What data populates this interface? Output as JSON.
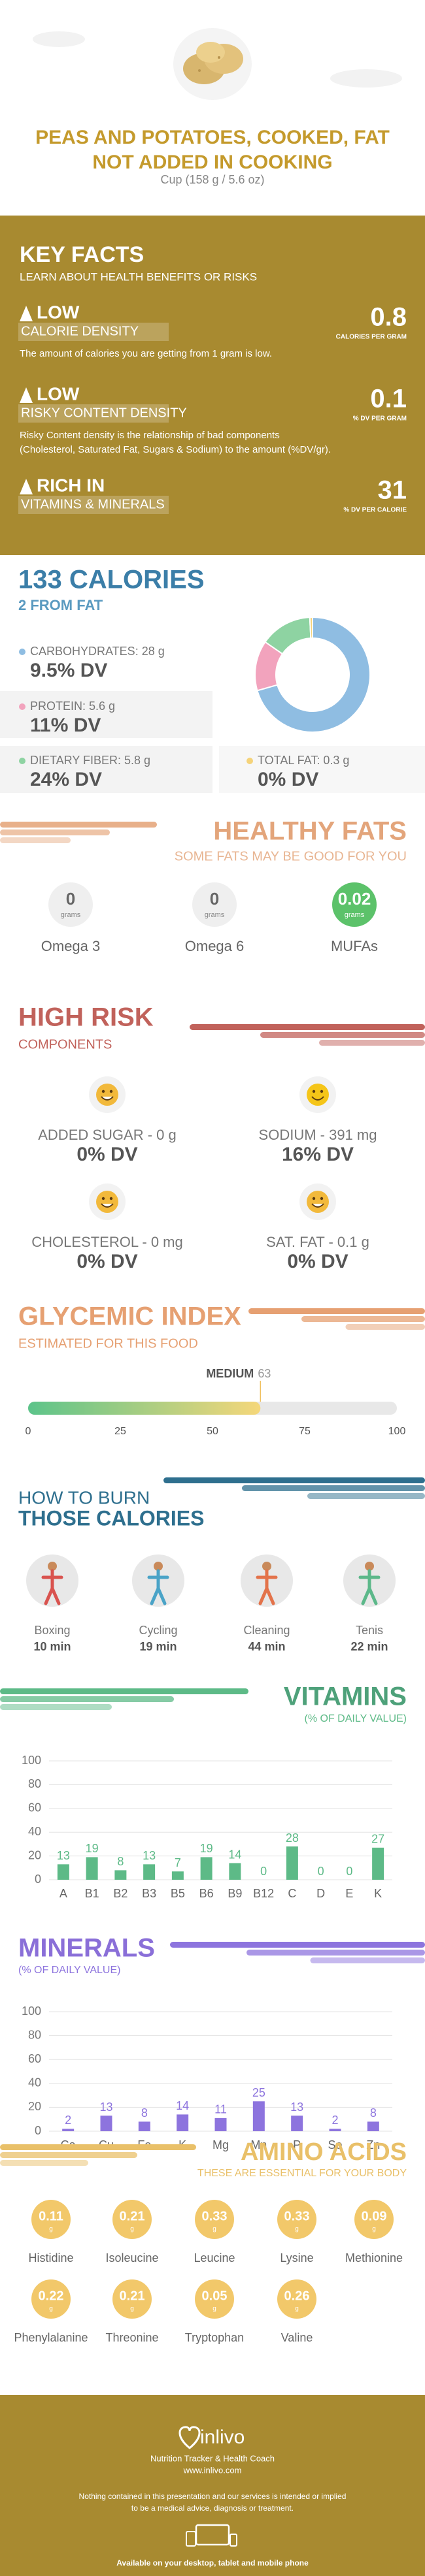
{
  "header": {
    "title_lines": [
      "PEAS AND POTATOES, COOKED, FAT",
      "NOT ADDED IN COOKING"
    ],
    "serving": "Cup (158 g / 5.6 oz)"
  },
  "key_facts": {
    "title": "KEY FACTS",
    "subtitle": "LEARN ABOUT HEALTH BENEFITS OR RISKS",
    "items": [
      {
        "level": "LOW",
        "label": "CALORIE DENSITY",
        "value": 0.8,
        "unit": "CALORIES PER GRAM",
        "description_lines": [
          "The amount of calories you are getting from 1 gram is low."
        ]
      },
      {
        "level": "LOW",
        "label": "RISKY CONTENT DENSITY",
        "value": 0.1,
        "unit": "% DV PER GRAM",
        "description_lines": [
          "Risky Content density is the relationship of bad components",
          "(Cholesterol, Saturated Fat, Sugars & Sodium) to the amount (%DV/gr)."
        ]
      },
      {
        "level": "RICH IN",
        "label": "VITAMINS & MINERALS",
        "value": 31,
        "unit": "% DV PER CALORIE",
        "description_lines": []
      }
    ]
  },
  "calories": {
    "title": "133 CALORIES",
    "subtitle": "2 FROM FAT"
  },
  "healthy_fats": {
    "title": "HEALTHY FATS",
    "subtitle": "SOME FATS MAY BE GOOD FOR YOU",
    "unit": "grams",
    "items": [
      {
        "name": "Omega 3",
        "value": 0
      },
      {
        "name": "Omega 6",
        "value": 0
      },
      {
        "name": "MUFAs",
        "value": 0.02
      }
    ]
  },
  "high_risk": {
    "title": "HIGH RISK",
    "subtitle": "COMPONENTS",
    "items": [
      {
        "label": "ADDED SUGAR - 0 g",
        "dv": "0% DV"
      },
      {
        "label": "SODIUM - 391 mg",
        "dv": "16% DV"
      },
      {
        "label": "CHOLESTEROL - 0 mg",
        "dv": "0% DV"
      },
      {
        "label": "SAT. FAT - 0.1 g",
        "dv": "0% DV"
      }
    ]
  },
  "burn": {
    "title_lines": [
      "HOW TO BURN",
      "THOSE CALORIES"
    ],
    "activities": [
      {
        "name": "Boxing",
        "time": "10 min"
      },
      {
        "name": "Cycling",
        "time": "19 min"
      },
      {
        "name": "Cleaning",
        "time": "44 min"
      },
      {
        "name": "Tenis",
        "time": "22 min"
      }
    ]
  },
  "amino_acids": {
    "title": "AMINO ACIDS",
    "subtitle": "THESE ARE ESSENTIAL FOR YOUR BODY",
    "unit": "g",
    "items": [
      {
        "name": "Histidine",
        "value": 0.11
      },
      {
        "name": "Isoleucine",
        "value": 0.21
      },
      {
        "name": "Leucine",
        "value": 0.33
      },
      {
        "name": "Lysine",
        "value": 0.33
      },
      {
        "name": "Methionine",
        "value": 0.09
      },
      {
        "name": "Phenylalanine",
        "value": 0.22
      },
      {
        "name": "Threonine",
        "value": 0.21
      },
      {
        "name": "Tryptophan",
        "value": 0.05
      },
      {
        "name": "Valine",
        "value": 0.26
      }
    ]
  },
  "footer": {
    "brand": "inlivo",
    "tagline": "Nutrition Tracker & Health Coach",
    "url": "www.inlivo.com",
    "disclaimer_lines": [
      "Nothing contained in this presentation and our services is intended or implied",
      "to be a medical advice, diagnosis or treatment."
    ],
    "available": "Available on your desktop, tablet and mobile phone"
  },
  "chart_data": [
    {
      "type": "pie",
      "categories": [
        "CARBOHYDRATES: 28 g",
        "PROTEIN: 5.6 g",
        "DIETARY FIBER: 5.8 g",
        "TOTAL FAT: 0.3 g"
      ],
      "values": [
        28,
        5.6,
        5.8,
        0.3
      ],
      "dv": [
        "9.5% DV",
        "11% DV",
        "24% DV",
        "0% DV"
      ],
      "colors": [
        "#8fbde2",
        "#f2a3bd",
        "#8ed3a2",
        "#f5d37a"
      ]
    },
    {
      "type": "gauge",
      "title": "GLYCEMIC INDEX",
      "subtitle": "ESTIMATED FOR THIS FOOD",
      "level": "MEDIUM",
      "value": 63,
      "xlim": [
        0,
        100
      ],
      "xticks": [
        0,
        25,
        50,
        75,
        100
      ]
    },
    {
      "type": "bar",
      "title": "VITAMINS",
      "subtitle": "(% OF DAILY VALUE)",
      "categories": [
        "A",
        "B1",
        "B2",
        "B3",
        "B5",
        "B6",
        "B9",
        "B12",
        "C",
        "D",
        "E",
        "K"
      ],
      "values": [
        13,
        19,
        8,
        13,
        7,
        19,
        14,
        0,
        28,
        0,
        0,
        27
      ],
      "color": "#5dba87",
      "ylim": [
        0,
        100
      ],
      "yticks": [
        0,
        20,
        40,
        60,
        80,
        100
      ],
      "grid": true
    },
    {
      "type": "bar",
      "title": "MINERALS",
      "subtitle": "(% OF DAILY VALUE)",
      "categories": [
        "Ca",
        "Cu",
        "Fe",
        "K",
        "Mg",
        "Mn",
        "P",
        "Se",
        "Zn"
      ],
      "values": [
        2,
        13,
        8,
        14,
        11,
        25,
        13,
        2,
        8
      ],
      "color": "#8d74de",
      "ylim": [
        0,
        100
      ],
      "yticks": [
        0,
        20,
        40,
        60,
        80,
        100
      ],
      "grid": true
    }
  ]
}
